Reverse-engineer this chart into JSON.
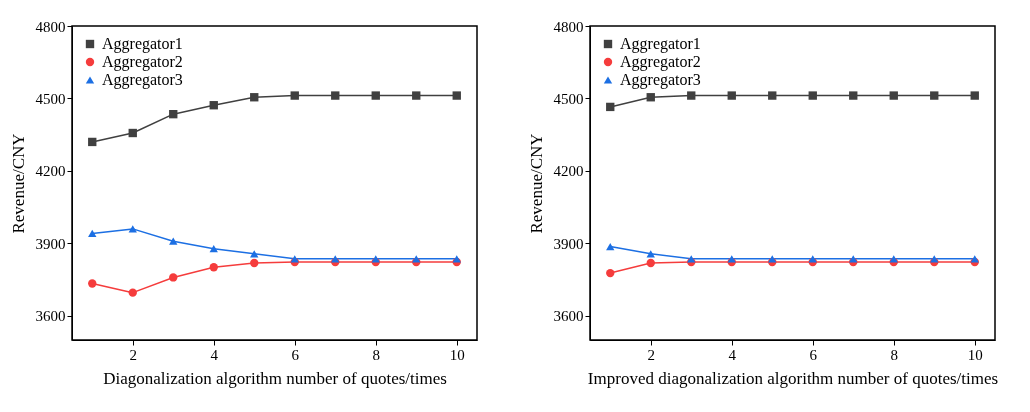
{
  "chart_data": [
    {
      "type": "line",
      "xlabel": "Diagonalization algorithm number of quotes/times",
      "ylabel": "Revenue/CNY",
      "x": [
        1,
        2,
        3,
        4,
        5,
        6,
        7,
        8,
        9,
        10
      ],
      "xlim": [
        0.5,
        10.5
      ],
      "xticks": [
        2,
        4,
        6,
        8,
        10
      ],
      "ylim": [
        3500,
        4800
      ],
      "yticks": [
        3600,
        3900,
        4200,
        4500,
        4800
      ],
      "grid": false,
      "legend": "top left",
      "series": [
        {
          "name": "Aggregator1",
          "color": "#404040",
          "marker": "square",
          "values": [
            4320,
            4357,
            4435,
            4472,
            4505,
            4512,
            4512,
            4512,
            4512,
            4512
          ]
        },
        {
          "name": "Aggregator2",
          "color": "#f53c3c",
          "marker": "circle",
          "values": [
            3734,
            3696,
            3759,
            3801,
            3819,
            3823,
            3823,
            3823,
            3823,
            3823
          ]
        },
        {
          "name": "Aggregator3",
          "color": "#1c6fe3",
          "marker": "triangle",
          "values": [
            3941,
            3960,
            3909,
            3878,
            3857,
            3836,
            3836,
            3836,
            3836,
            3836
          ]
        }
      ]
    },
    {
      "type": "line",
      "xlabel": "Improved diagonalization algorithm number of quotes/times",
      "ylabel": "Revenue/CNY",
      "x": [
        1,
        2,
        3,
        4,
        5,
        6,
        7,
        8,
        9,
        10
      ],
      "xlim": [
        0.5,
        10.5
      ],
      "xticks": [
        2,
        4,
        6,
        8,
        10
      ],
      "ylim": [
        3500,
        4800
      ],
      "yticks": [
        3600,
        3900,
        4200,
        4500,
        4800
      ],
      "grid": false,
      "legend": "top left",
      "series": [
        {
          "name": "Aggregator1",
          "color": "#404040",
          "marker": "square",
          "values": [
            4465,
            4505,
            4512,
            4512,
            4512,
            4512,
            4512,
            4512,
            4512,
            4512
          ]
        },
        {
          "name": "Aggregator2",
          "color": "#f53c3c",
          "marker": "circle",
          "values": [
            3777,
            3819,
            3823,
            3823,
            3823,
            3823,
            3823,
            3823,
            3823,
            3823
          ]
        },
        {
          "name": "Aggregator3",
          "color": "#1c6fe3",
          "marker": "triangle",
          "values": [
            3887,
            3857,
            3836,
            3836,
            3836,
            3836,
            3836,
            3836,
            3836,
            3836
          ]
        }
      ]
    }
  ]
}
